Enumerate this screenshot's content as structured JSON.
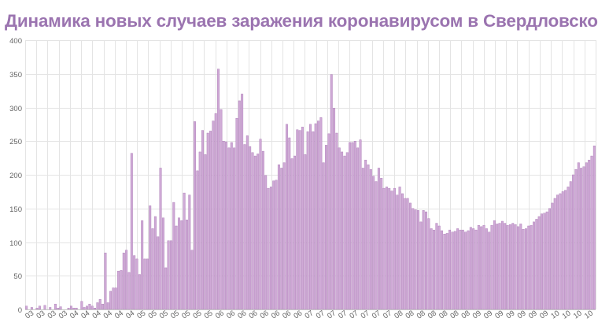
{
  "chart_data": {
    "type": "bar",
    "title": "Динамика новых случаев заражения коронавирусом в Свердловской области",
    "xlabel": "",
    "ylabel": "",
    "ylim": [
      0,
      400
    ],
    "yticks": [
      "0",
      "50",
      "100",
      "150",
      "200",
      "250",
      "300",
      "350",
      "400"
    ],
    "grid": true,
    "legend": "none",
    "x_month_labels": [
      "03",
      "03",
      "03",
      "03",
      "04",
      "04",
      "04",
      "04",
      "04",
      "04",
      "05",
      "05",
      "05",
      "05",
      "05",
      "05",
      "05",
      "06",
      "06",
      "06",
      "06",
      "06",
      "06",
      "06",
      "06",
      "07",
      "07",
      "07",
      "07",
      "07",
      "07",
      "07",
      "07",
      "08",
      "08",
      "08",
      "08",
      "08",
      "08",
      "08",
      "09",
      "09",
      "09",
      "09",
      "09",
      "09",
      "09",
      "10",
      "10",
      "10",
      "10"
    ],
    "values": [
      5,
      0,
      3,
      0,
      2,
      5,
      0,
      6,
      0,
      3,
      0,
      8,
      2,
      4,
      0,
      0,
      2,
      5,
      2,
      2,
      0,
      12,
      3,
      5,
      8,
      5,
      2,
      10,
      15,
      8,
      84,
      10,
      27,
      32,
      32,
      57,
      58,
      84,
      88,
      55,
      232,
      80,
      75,
      52,
      132,
      75,
      75,
      154,
      120,
      138,
      108,
      210,
      136,
      62,
      102,
      102,
      159,
      124,
      136,
      132,
      173,
      133,
      170,
      88,
      279,
      206,
      234,
      266,
      230,
      262,
      265,
      280,
      291,
      357,
      297,
      250,
      249,
      240,
      248,
      240,
      284,
      310,
      320,
      245,
      258,
      242,
      233,
      228,
      231,
      253,
      235,
      199,
      180,
      182,
      191,
      192,
      215,
      210,
      218,
      275,
      255,
      224,
      228,
      267,
      266,
      271,
      230,
      264,
      275,
      264,
      276,
      280,
      285,
      218,
      244,
      261,
      349,
      299,
      262,
      240,
      234,
      228,
      233,
      248,
      248,
      250,
      240,
      252,
      210,
      222,
      215,
      208,
      198,
      190,
      210,
      195,
      180,
      182,
      180,
      176,
      180,
      170,
      182,
      172,
      165,
      165,
      158,
      150,
      148,
      147,
      130,
      147,
      145,
      135,
      120,
      118,
      128,
      124,
      117,
      112,
      113,
      118,
      115,
      116,
      120,
      118,
      118,
      115,
      117,
      122,
      120,
      118,
      125,
      123,
      125,
      120,
      115,
      125,
      132,
      127,
      128,
      131,
      128,
      125,
      126,
      128,
      126,
      123,
      127,
      119,
      120,
      124,
      125,
      130,
      134,
      138,
      142,
      143,
      145,
      150,
      158,
      165,
      170,
      172,
      175,
      177,
      182,
      190,
      200,
      208,
      218,
      210,
      212,
      218,
      222,
      228,
      243
    ]
  },
  "colors": {
    "bar": "#cfa9d6",
    "bar_edge": "#a878b3",
    "title": "#9b74b0",
    "grid": "#e4e4e4",
    "axis": "#c8c8c8"
  }
}
